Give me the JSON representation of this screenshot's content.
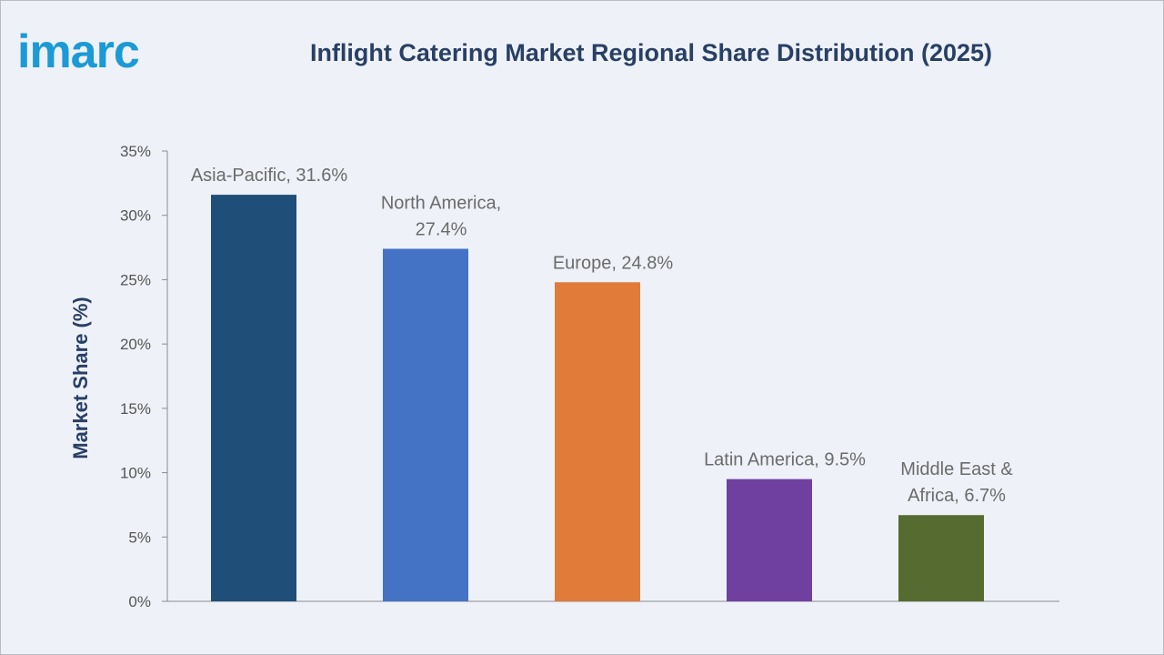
{
  "brand": {
    "logo_text": "imarc",
    "logo_color": "#1b9ad6"
  },
  "chart_data": {
    "type": "bar",
    "title": "Inflight Catering Market Regional Share Distribution (2025)",
    "xlabel": "",
    "ylabel": "Market Share (%)",
    "ylim": [
      0,
      35
    ],
    "yticks": [
      0,
      5,
      10,
      15,
      20,
      25,
      30,
      35
    ],
    "ytick_labels": [
      "0%",
      "5%",
      "10%",
      "15%",
      "20%",
      "25%",
      "30%",
      "35%"
    ],
    "grid": false,
    "legend": "none",
    "categories": [
      "Asia-Pacific",
      "North America",
      "Europe",
      "Latin America",
      "Middle East & Africa"
    ],
    "values": [
      31.6,
      27.4,
      24.8,
      9.5,
      6.7
    ],
    "colors": [
      "#1f4e79",
      "#4472c4",
      "#e07b39",
      "#7040a0",
      "#556b2f"
    ],
    "data_labels": [
      [
        "Asia-Pacific, 31.6%"
      ],
      [
        "North America,",
        "27.4%"
      ],
      [
        "Europe, 24.8%"
      ],
      [
        "Latin America, 9.5%"
      ],
      [
        "Middle East &",
        "Africa, 6.7%"
      ]
    ]
  }
}
